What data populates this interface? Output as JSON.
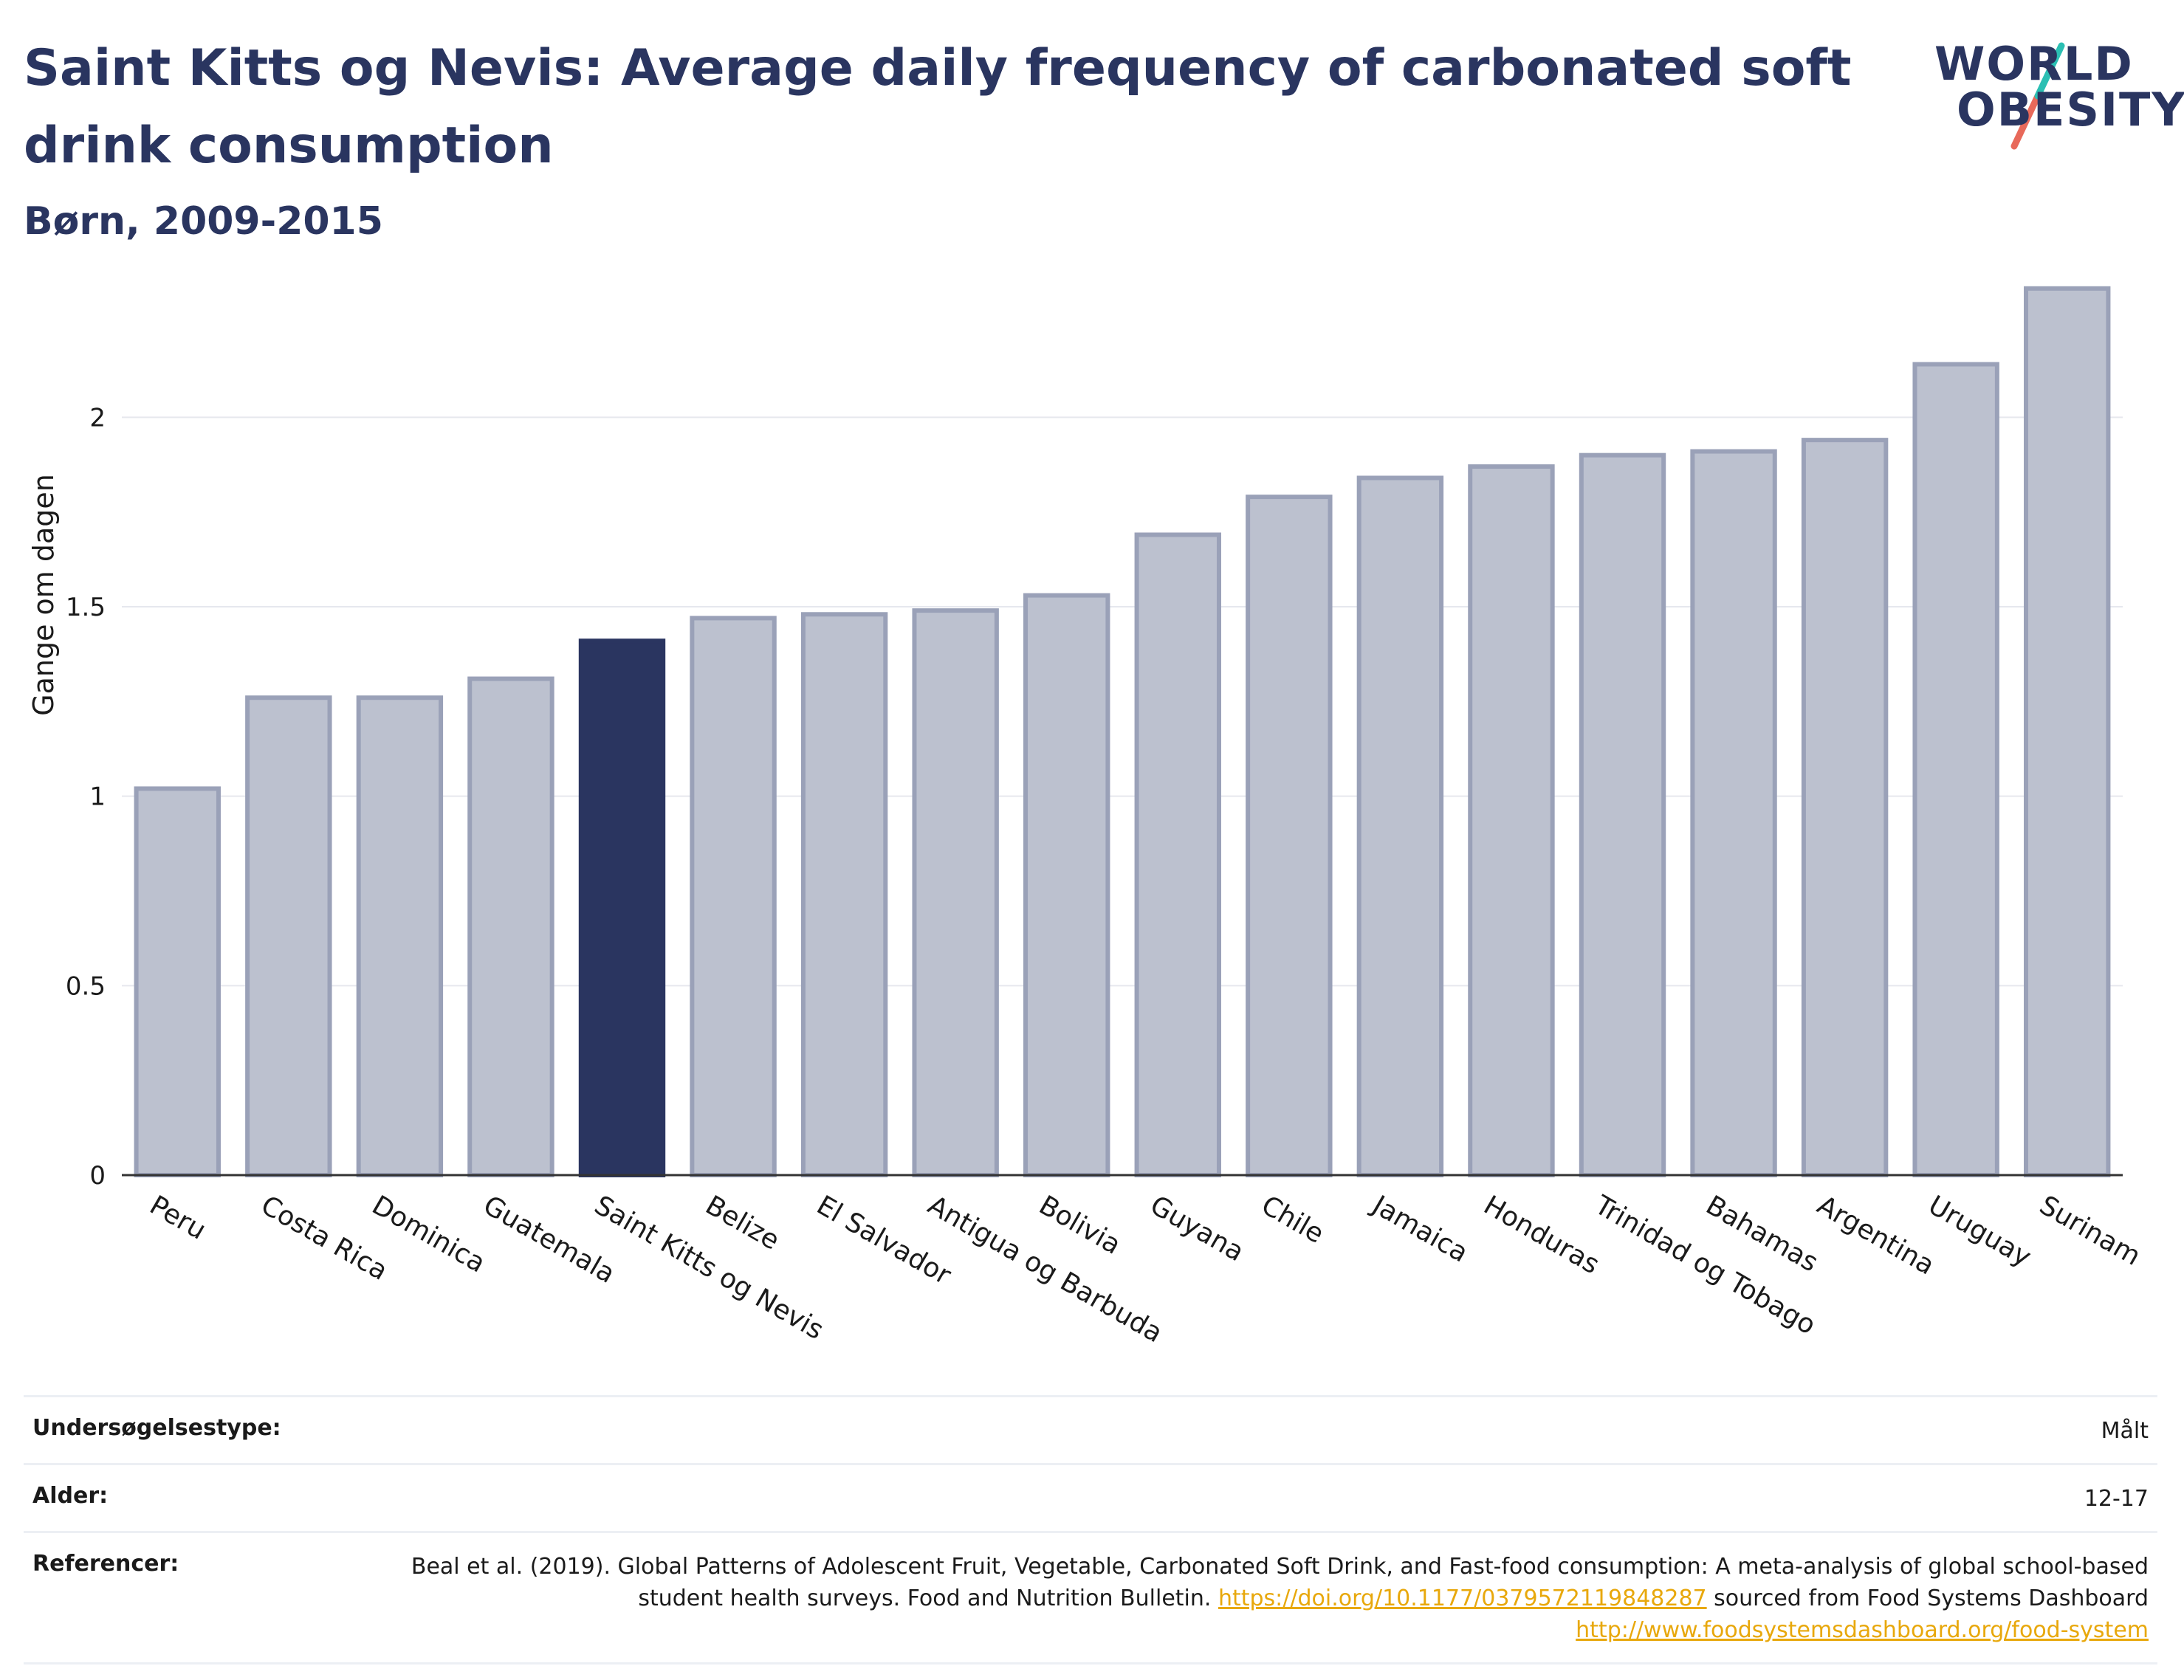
{
  "title": "Saint Kitts og Nevis: Average daily frequency of carbonated soft drink consumption",
  "subtitle": "Børn, 2009-2015",
  "logo": {
    "line1": "WORLD",
    "line2": "OBESITY"
  },
  "colors": {
    "bar": "#bcc1cf",
    "bar_border": "#9aa1b8",
    "highlight": "#2a3560",
    "accent_teal": "#2bbfb3",
    "accent_coral": "#e8695a",
    "link": "#e8a80c"
  },
  "chart_data": {
    "type": "bar",
    "title": "Saint Kitts og Nevis: Average daily frequency of carbonated soft drink consumption",
    "subtitle": "Børn, 2009-2015",
    "xlabel": "",
    "ylabel": "Gange om dagen",
    "ylim": [
      0,
      2.4
    ],
    "yticks": [
      0,
      0.5,
      1,
      1.5,
      2
    ],
    "ytick_labels": [
      "0",
      "0.5",
      "1",
      "1.5",
      "2"
    ],
    "grid": true,
    "highlight": "Saint Kitts og Nevis",
    "categories": [
      "Peru",
      "Costa Rica",
      "Dominica",
      "Guatemala",
      "Saint Kitts og Nevis",
      "Belize",
      "El Salvador",
      "Antigua og Barbuda",
      "Bolivia",
      "Guyana",
      "Chile",
      "Jamaica",
      "Honduras",
      "Trinidad og Tobago",
      "Bahamas",
      "Argentina",
      "Uruguay",
      "Surinam"
    ],
    "values": [
      1.02,
      1.26,
      1.26,
      1.31,
      1.41,
      1.47,
      1.48,
      1.49,
      1.53,
      1.69,
      1.79,
      1.84,
      1.87,
      1.9,
      1.91,
      1.94,
      2.14,
      2.34
    ]
  },
  "meta": {
    "survey_label": "Undersøgelsestype:",
    "survey_value": "Målt",
    "age_label": "Alder:",
    "age_value": "12-17",
    "ref_label": "Referencer:",
    "ref_text1": "Beal et al. (2019). Global Patterns of Adolescent Fruit, Vegetable, Carbonated Soft Drink, and Fast-food consumption: A meta-analysis of global school-based student health surveys. Food and Nutrition Bulletin. ",
    "ref_link1": "https://doi.org/10.1177/0379572119848287",
    "ref_text2": " sourced from Food Systems Dashboard ",
    "ref_link2": "http://www.foodsystemsdashboard.org/food-system"
  }
}
